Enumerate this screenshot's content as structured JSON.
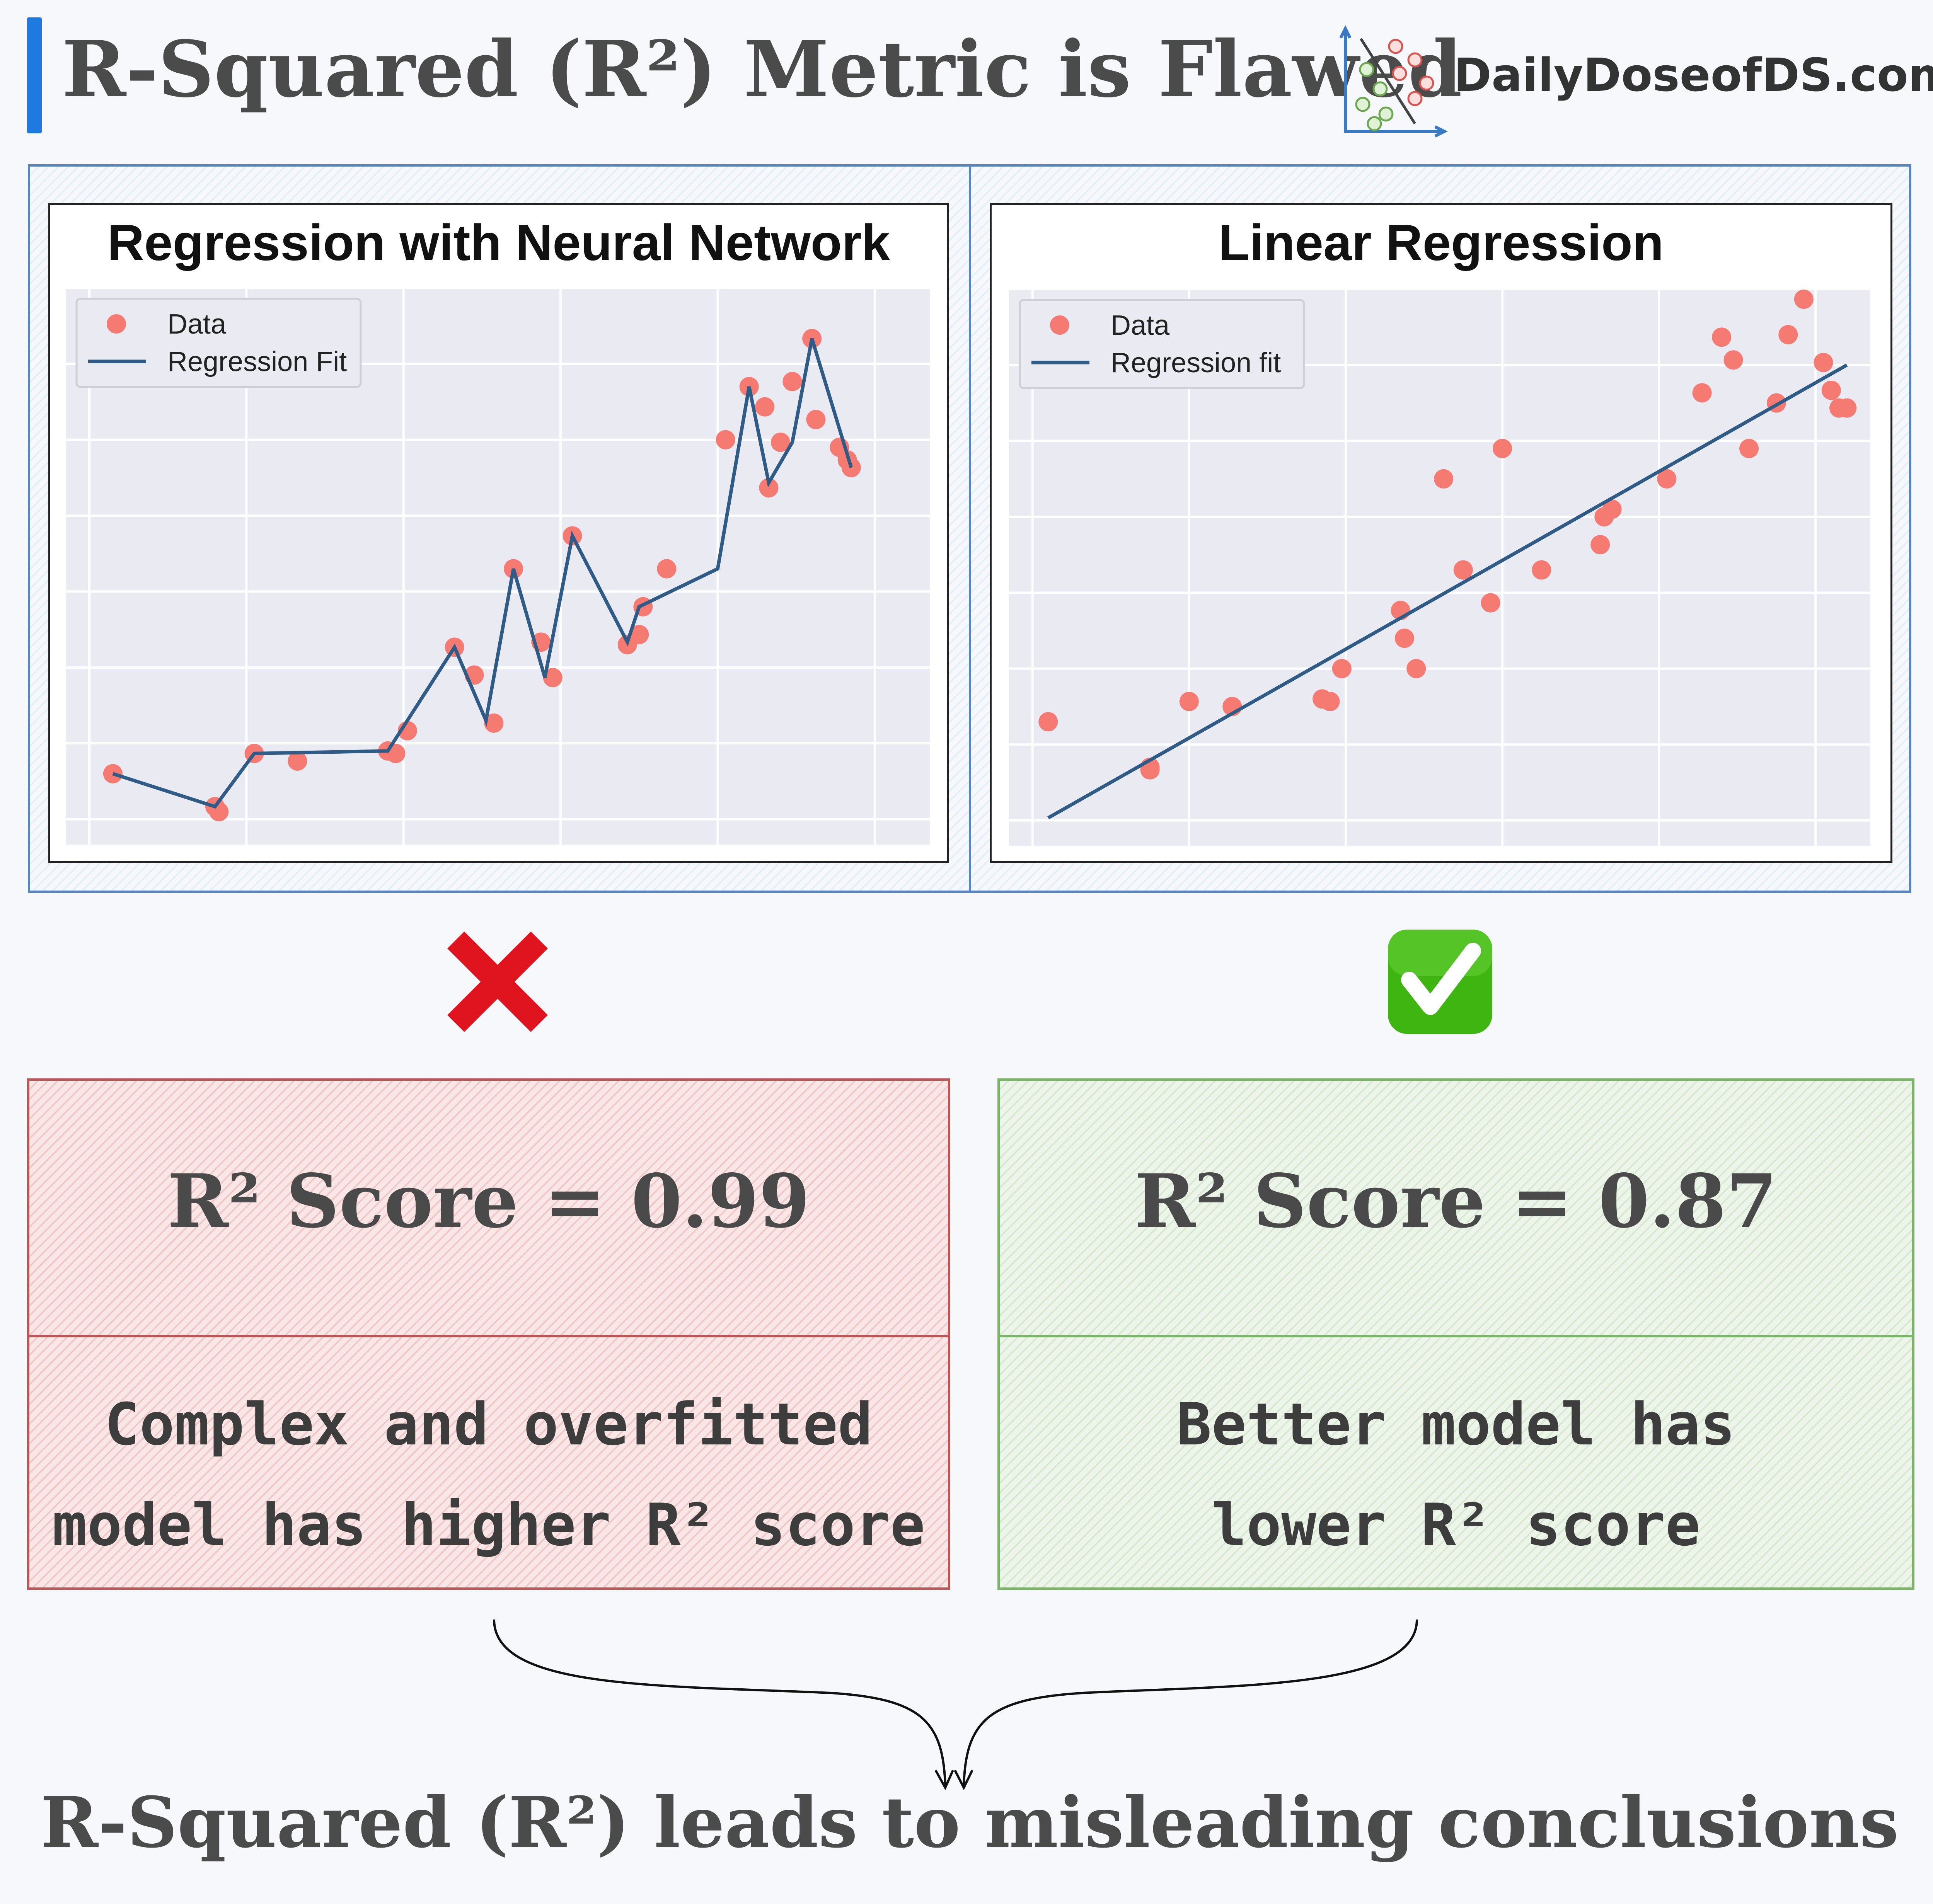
{
  "header": {
    "title": "R-Squared (R²) Metric is Flawed",
    "brand": "DailyDoseofDS.com",
    "accent_color": "#1f7ae0"
  },
  "charts": {
    "left": {
      "title": "Regression with Neural Network",
      "legend": {
        "data_label": "Data",
        "fit_label": "Regression Fit"
      }
    },
    "right": {
      "title": "Linear Regression",
      "legend": {
        "data_label": "Data",
        "fit_label": "Regression fit"
      }
    }
  },
  "chart_data": [
    {
      "type": "scatter",
      "title": "Regression with Neural Network",
      "xlim": [
        -0.05,
        1.05
      ],
      "ylim": [
        -0.05,
        1.05
      ],
      "grid": true,
      "legend_position": "top-left",
      "series": [
        {
          "name": "Data",
          "kind": "scatter",
          "color": "#f47a72",
          "x": [
            0.01,
            0.14,
            0.145,
            0.19,
            0.245,
            0.36,
            0.37,
            0.385,
            0.445,
            0.47,
            0.495,
            0.52,
            0.555,
            0.57,
            0.595,
            0.665,
            0.68,
            0.685,
            0.715,
            0.79,
            0.82,
            0.84,
            0.845,
            0.86,
            0.875,
            0.9,
            0.905,
            0.935,
            0.945,
            0.95
          ],
          "y": [
            0.09,
            0.025,
            0.015,
            0.13,
            0.115,
            0.135,
            0.13,
            0.175,
            0.34,
            0.285,
            0.19,
            0.495,
            0.35,
            0.28,
            0.56,
            0.345,
            0.365,
            0.42,
            0.495,
            0.75,
            0.855,
            0.815,
            0.655,
            0.745,
            0.865,
            0.95,
            0.79,
            0.735,
            0.71,
            0.695
          ]
        },
        {
          "name": "Regression Fit",
          "kind": "line",
          "color": "#2f5c86",
          "x": [
            0.01,
            0.14,
            0.19,
            0.36,
            0.445,
            0.485,
            0.52,
            0.56,
            0.595,
            0.665,
            0.68,
            0.78,
            0.82,
            0.845,
            0.875,
            0.9,
            0.95
          ],
          "y": [
            0.09,
            0.025,
            0.13,
            0.135,
            0.34,
            0.195,
            0.495,
            0.28,
            0.56,
            0.35,
            0.42,
            0.495,
            0.855,
            0.665,
            0.745,
            0.95,
            0.695
          ]
        }
      ]
    },
    {
      "type": "scatter",
      "title": "Linear Regression",
      "xlim": [
        -0.05,
        1.05
      ],
      "ylim": [
        -0.05,
        1.05
      ],
      "grid": true,
      "legend_position": "top-left",
      "series": [
        {
          "name": "Data",
          "kind": "scatter",
          "color": "#f47a72",
          "x": [
            0.0,
            0.13,
            0.13,
            0.18,
            0.235,
            0.35,
            0.36,
            0.375,
            0.45,
            0.455,
            0.47,
            0.505,
            0.53,
            0.565,
            0.58,
            0.63,
            0.705,
            0.71,
            0.72,
            0.79,
            0.835,
            0.86,
            0.875,
            0.895,
            0.93,
            0.945,
            0.965,
            0.99,
            1.0,
            1.01,
            1.02
          ],
          "y": [
            0.195,
            0.105,
            0.1,
            0.235,
            0.225,
            0.24,
            0.235,
            0.3,
            0.415,
            0.36,
            0.3,
            0.675,
            0.495,
            0.43,
            0.735,
            0.495,
            0.545,
            0.6,
            0.615,
            0.675,
            0.845,
            0.955,
            0.91,
            0.735,
            0.825,
            0.96,
            1.03,
            0.905,
            0.85,
            0.815,
            0.815
          ]
        },
        {
          "name": "Regression fit",
          "kind": "line",
          "color": "#2f5c86",
          "x": [
            0.0,
            1.02
          ],
          "y": [
            0.005,
            0.9
          ]
        }
      ]
    }
  ],
  "verdicts": {
    "left_mark": "cross",
    "right_mark": "check",
    "cross_color": "#e0141e",
    "check_color": "#3fb512"
  },
  "scores": {
    "left": {
      "score": "R² Score = 0.99",
      "desc_line1": "Complex and overfitted",
      "desc_line2": "model has higher R² score"
    },
    "right": {
      "score": "R² Score = 0.87",
      "desc_line1": "Better model has",
      "desc_line2": "lower R² score"
    }
  },
  "conclusion": "R-Squared (R²) leads to misleading conclusions"
}
